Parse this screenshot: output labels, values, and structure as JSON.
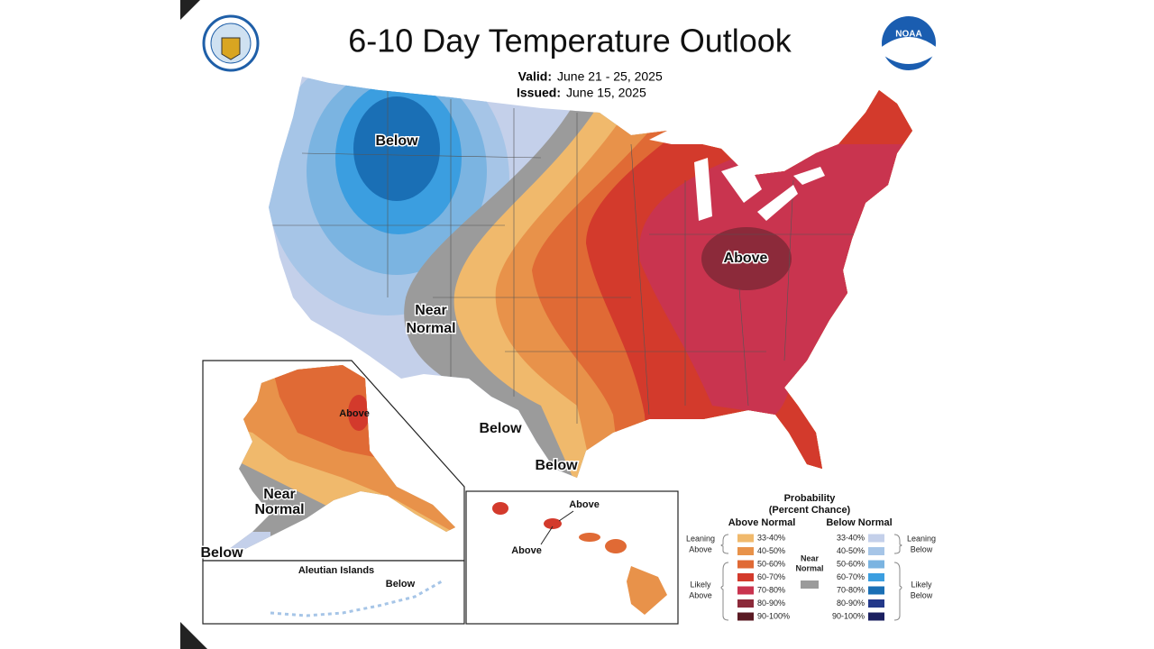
{
  "header": {
    "title": "6-10 Day Temperature Outlook",
    "valid_label": "Valid:",
    "valid_date": "June 21 - 25, 2025",
    "issued_label": "Issued:",
    "issued_date": "June 15, 2025",
    "noaa_logo": "NOAA"
  },
  "map_labels": {
    "conus_below": "Below",
    "conus_above": "Above",
    "near_normal": [
      "Near",
      "Normal"
    ],
    "texas_below": "Below",
    "coast_below": "Below"
  },
  "alaska": {
    "above": "Above",
    "near_normal": [
      "Near",
      "Normal"
    ],
    "below": "Below"
  },
  "aleutian": {
    "title": "Aleutian Islands",
    "below": "Below"
  },
  "hawaii": {
    "above_1": "Above",
    "above_2": "Above"
  },
  "legend": {
    "title": "Probability",
    "subtitle": "(Percent Chance)",
    "above_header": "Above Normal",
    "below_header": "Below Normal",
    "above": [
      {
        "label": "33-40%",
        "color": "#f0b96c"
      },
      {
        "label": "40-50%",
        "color": "#e8924a"
      },
      {
        "label": "50-60%",
        "color": "#e06a35"
      },
      {
        "label": "60-70%",
        "color": "#d33a2c"
      },
      {
        "label": "70-80%",
        "color": "#c9344f"
      },
      {
        "label": "80-90%",
        "color": "#8c2a3a"
      },
      {
        "label": "90-100%",
        "color": "#5a1a23"
      }
    ],
    "below": [
      {
        "label": "33-40%",
        "color": "#c4d0ea"
      },
      {
        "label": "40-50%",
        "color": "#a6c5e7"
      },
      {
        "label": "50-60%",
        "color": "#7bb4e1"
      },
      {
        "label": "60-70%",
        "color": "#3b9ee0"
      },
      {
        "label": "70-80%",
        "color": "#1a6fb5"
      },
      {
        "label": "80-90%",
        "color": "#24398a"
      },
      {
        "label": "90-100%",
        "color": "#1b2060"
      }
    ],
    "leaning_above": [
      "Leaning",
      "Above"
    ],
    "likely_above": [
      "Likely",
      "Above"
    ],
    "near_normal": [
      "Near",
      "Normal"
    ],
    "near_normal_color": "#9b9b9b",
    "leaning_below": [
      "Leaning",
      "Below"
    ],
    "likely_below": [
      "Likely",
      "Below"
    ]
  }
}
